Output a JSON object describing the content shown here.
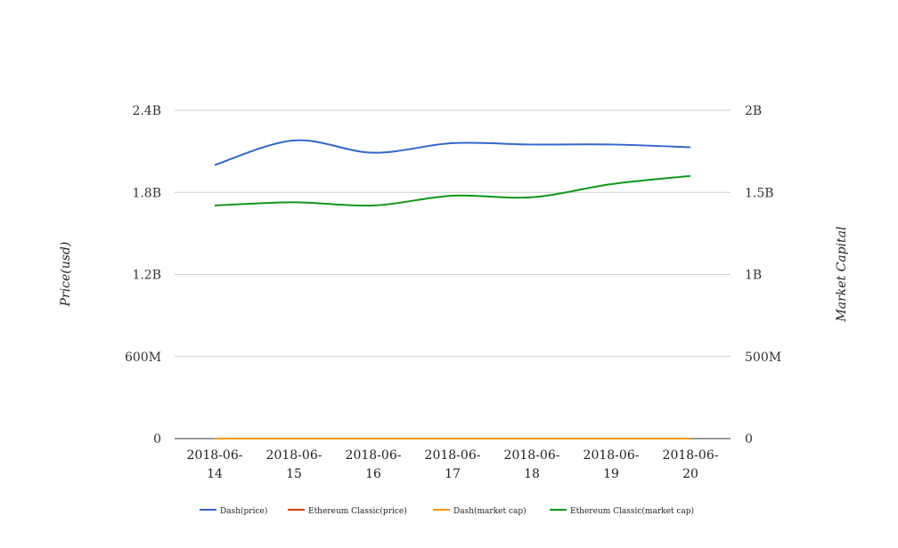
{
  "chart_data": {
    "type": "line",
    "title": "",
    "categories": [
      "2018-06-14",
      "2018-06-15",
      "2018-06-16",
      "2018-06-17",
      "2018-06-18",
      "2018-06-19",
      "2018-06-20"
    ],
    "category_labels": [
      [
        "2018-06-",
        "14"
      ],
      [
        "2018-06-",
        "15"
      ],
      [
        "2018-06-",
        "16"
      ],
      [
        "2018-06-",
        "17"
      ],
      [
        "2018-06-",
        "18"
      ],
      [
        "2018-06-",
        "19"
      ],
      [
        "2018-06-",
        "20"
      ]
    ],
    "y_left": {
      "label": "Price(usd)",
      "range": [
        0,
        2400000000
      ],
      "ticks": [
        0,
        600000000,
        1200000000,
        1800000000,
        2400000000
      ],
      "tick_labels": [
        "0",
        "600M",
        "1.2B",
        "1.8B",
        "2.4B"
      ]
    },
    "y_right": {
      "label": "Market Capital",
      "range": [
        0,
        2000000000
      ],
      "ticks": [
        0,
        500000000,
        1000000000,
        1500000000,
        2000000000
      ],
      "tick_labels": [
        "0",
        "500M",
        "1B",
        "1.5B",
        "2B"
      ]
    },
    "grid": true,
    "legend_position": "bottom",
    "series": [
      {
        "name": "Dash(price)",
        "axis": "left",
        "color": "#3366cc",
        "values": [
          2000000000,
          2180000000,
          2090000000,
          2160000000,
          2150000000,
          2150000000,
          2130000000
        ]
      },
      {
        "name": "Ethereum Classic(price)",
        "axis": "left",
        "color": "#dc3912",
        "values": [
          0,
          0,
          0,
          0,
          0,
          0,
          0
        ]
      },
      {
        "name": "Dash(market cap)",
        "axis": "right",
        "color": "#ff9900",
        "values": [
          0,
          0,
          0,
          0,
          0,
          0,
          0
        ]
      },
      {
        "name": "Ethereum Classic(market cap)",
        "axis": "right",
        "color": "#109618",
        "values": [
          1420000000,
          1440000000,
          1420000000,
          1480000000,
          1470000000,
          1550000000,
          1600000000
        ]
      }
    ]
  }
}
